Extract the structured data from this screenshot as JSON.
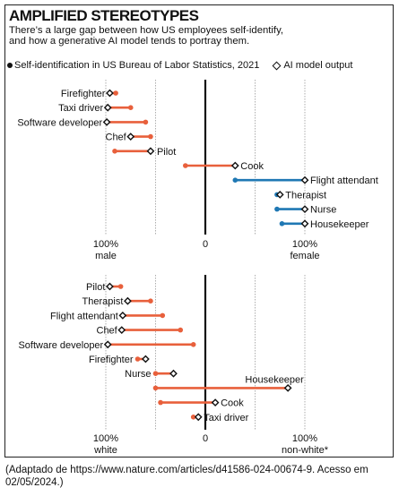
{
  "header": {
    "title": "AMPLIFIED STEREOTYPES",
    "subtitle_line1": "There’s a large gap between how US employees self-identify,",
    "subtitle_line2": "and how a generative AI model tends to portray them."
  },
  "legend": {
    "dot_label": "Self-identification in US Bureau of Labor Statistics, 2021",
    "diamond_label": "AI model output"
  },
  "colors": {
    "male_side": "#e8603c",
    "female_side": "#1f78b4",
    "axis": "#111111",
    "grid": "#9a9a9a"
  },
  "caption": "(Adaptado de https://www.nature.com/articles/d41586-024-00674-9. Acesso em 02/05/2024.)",
  "chart_data": [
    {
      "type": "dumbbell",
      "xlim": [
        -100,
        100
      ],
      "ticks": [
        {
          "value": -100,
          "label": "100%",
          "sublabel": "male"
        },
        {
          "value": 0,
          "label": "0",
          "sublabel": ""
        },
        {
          "value": 100,
          "label": "100%",
          "sublabel": "female"
        }
      ],
      "rows": [
        {
          "label": "Firefighter",
          "self": -90,
          "ai": -96
        },
        {
          "label": "Taxi driver",
          "self": -75,
          "ai": -98
        },
        {
          "label": "Software developer",
          "self": -60,
          "ai": -99
        },
        {
          "label": "Chef",
          "self": -55,
          "ai": -75
        },
        {
          "label": "Pilot",
          "self": -91,
          "ai": -55
        },
        {
          "label": "Cook",
          "self": -20,
          "ai": 30
        },
        {
          "label": "Flight attendant",
          "self": 30,
          "ai": 100
        },
        {
          "label": "Therapist",
          "self": 72,
          "ai": 75
        },
        {
          "label": "Nurse",
          "self": 72,
          "ai": 100
        },
        {
          "label": "Housekeeper",
          "self": 77,
          "ai": 100
        }
      ]
    },
    {
      "type": "dumbbell",
      "xlim": [
        -100,
        100
      ],
      "ticks": [
        {
          "value": -100,
          "label": "100%",
          "sublabel": "white"
        },
        {
          "value": 0,
          "label": "0",
          "sublabel": ""
        },
        {
          "value": 100,
          "label": "100%",
          "sublabel": "non-white*"
        }
      ],
      "rows": [
        {
          "label": "Pilot",
          "self": -85,
          "ai": -96
        },
        {
          "label": "Therapist",
          "self": -55,
          "ai": -78
        },
        {
          "label": "Flight attendant",
          "self": -43,
          "ai": -83
        },
        {
          "label": "Chef",
          "self": -25,
          "ai": -84
        },
        {
          "label": "Software developer",
          "self": -12,
          "ai": -98
        },
        {
          "label": "Firefighter",
          "self": -68,
          "ai": -60
        },
        {
          "label": "Nurse",
          "self": -50,
          "ai": -32
        },
        {
          "label": "Housekeeper",
          "self": -50,
          "ai": 83
        },
        {
          "label": "Cook",
          "self": -45,
          "ai": 10
        },
        {
          "label": "Taxi driver",
          "self": -12,
          "ai": -7
        }
      ]
    }
  ]
}
